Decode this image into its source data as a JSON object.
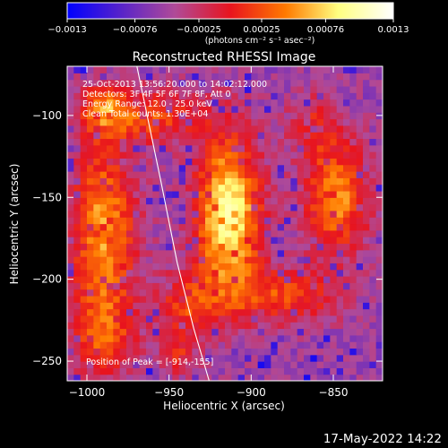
{
  "chart_data": {
    "type": "heatmap",
    "title": "Reconstructed RHESSI Image",
    "xlabel": "Heliocentric X (arcsec)",
    "ylabel": "Heliocentric Y (arcsec)",
    "xlim": [
      -1012,
      -820
    ],
    "ylim": [
      -262,
      -70
    ],
    "x_ticks": [
      -1000,
      -950,
      -900,
      -850
    ],
    "y_ticks": [
      -250,
      -200,
      -150,
      -100
    ],
    "x_tick_labels": [
      "−1000",
      "−950",
      "−900",
      "−850"
    ],
    "y_tick_labels": [
      "−250",
      "−200",
      "−150",
      "−100"
    ],
    "colorbar": {
      "range": [
        -0.0013,
        0.0013
      ],
      "ticks": [
        -0.0013,
        -0.00076,
        -0.00025,
        0.00025,
        0.00076,
        0.0013
      ],
      "tick_labels": [
        "−0.0013",
        "−0.00076",
        "−0.00025",
        "0.00025",
        "0.00076",
        "0.0013"
      ],
      "unit_label": "(photons cm⁻² s⁻¹ asec⁻²)",
      "colors": [
        "#0000ff",
        "#5a24c8",
        "#b04a98",
        "#e8141e",
        "#ff7a00",
        "#ffff80",
        "#ffffff"
      ]
    },
    "annotations": [
      "25-Oct-2013 13:56:20.000 to 14:02:12.000",
      "Detectors: 3F 4F 5F 6F 7F 8F, Att 0",
      "Energy Range: 12.0 - 25.0 keV",
      "Clean     Total counts: 1.30E+04"
    ],
    "peak_label": "Position of Peak = [-914,-155]",
    "peak_position": [
      -914,
      -155
    ],
    "limb_points": [
      [
        -970,
        -68
      ],
      [
        -955,
        -140
      ],
      [
        -945,
        -190
      ],
      [
        -935,
        -230
      ],
      [
        -925,
        -264
      ]
    ],
    "grid": false
  },
  "footer": {
    "timestamp": "17-May-2022 14:22"
  }
}
